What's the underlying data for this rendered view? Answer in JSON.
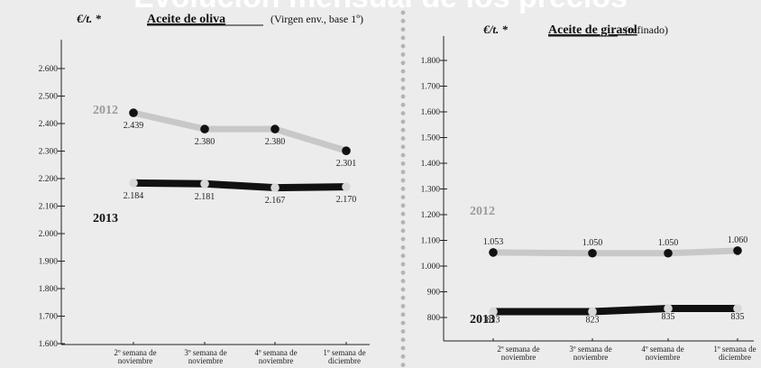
{
  "header_fragment": "Evolución mensual de los precios",
  "chart_data": [
    {
      "type": "line",
      "unit": "€/t. *",
      "title": "Aceite de oliva",
      "subtitle": "(Virgen env., base 1º)",
      "categories": [
        "2º semana de noviembre",
        "3º semana de noviembre",
        "4º semana de noviembre",
        "1º semana de diciembre"
      ],
      "y_ticks": [
        "1.600",
        "1.700",
        "1.800",
        "1.900",
        "2.000",
        "2.100",
        "2.200",
        "2.300",
        "2.400",
        "2.500",
        "2.600"
      ],
      "ylim": [
        1600,
        2600
      ],
      "grid": false,
      "series": [
        {
          "name": "2012",
          "color": "#c8c8c8",
          "values": [
            2439,
            2380,
            2380,
            2301
          ],
          "labels": [
            "2.439",
            "2.380",
            "2.380",
            "2.301"
          ]
        },
        {
          "name": "2013",
          "color": "#111111",
          "values": [
            2184,
            2181,
            2167,
            2170
          ],
          "labels": [
            "2.184",
            "2.181",
            "2.167",
            "2.170"
          ]
        }
      ]
    },
    {
      "type": "line",
      "unit": "€/t. *",
      "title": "Aceite de girasol",
      "subtitle": "(refinado)",
      "categories": [
        "2º semana de noviembre",
        "3º semana de noviembre",
        "4º semana de noviembre",
        "1º semana de diciembre"
      ],
      "y_ticks": [
        "800",
        "900",
        "1.000",
        "1.100",
        "1.200",
        "1.300",
        "1.400",
        "1.500",
        "1.600",
        "1.700",
        "1.800"
      ],
      "ylim": [
        800,
        1800
      ],
      "grid": false,
      "series": [
        {
          "name": "2012",
          "color": "#c8c8c8",
          "values": [
            1053,
            1050,
            1050,
            1060
          ],
          "labels": [
            "1.053",
            "1.050",
            "1.050",
            "1.060"
          ]
        },
        {
          "name": "2013",
          "color": "#111111",
          "values": [
            823,
            823,
            835,
            835
          ],
          "labels": [
            "823",
            "823",
            "835",
            "835"
          ]
        }
      ]
    }
  ]
}
